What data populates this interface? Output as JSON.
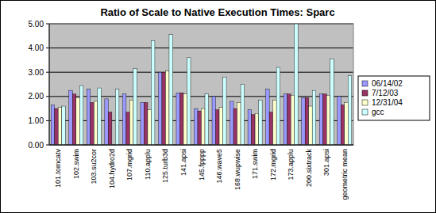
{
  "chart_data": {
    "type": "bar",
    "title": "Ratio of Scale to Native Execution Times: Sparc",
    "categories": [
      "101.tomcatv",
      "102.swim",
      "103.su2cor",
      "104.hydro2d",
      "107.mgrid",
      "110.applu",
      "125.turb3d",
      "141.apsi",
      "145.fpppp",
      "146.wave5",
      "168.wupwise",
      "171.swim",
      "172.mgrid",
      "173.applu",
      "200.sixtrack",
      "301.apsi",
      "geometric mean"
    ],
    "series": [
      {
        "name": "06/14/02",
        "color": "#9999ff",
        "values": [
          1.65,
          2.25,
          2.3,
          1.9,
          2.1,
          1.75,
          3.0,
          2.15,
          1.5,
          2.0,
          1.8,
          1.45,
          2.3,
          2.1,
          1.95,
          2.1,
          2.0
        ]
      },
      {
        "name": "7/12/03",
        "color": "#993366",
        "values": [
          1.5,
          2.1,
          1.75,
          1.35,
          1.35,
          1.75,
          3.0,
          2.15,
          1.4,
          1.45,
          1.5,
          1.25,
          1.35,
          2.1,
          1.95,
          2.1,
          1.65
        ]
      },
      {
        "name": "12/31/04",
        "color": "#ffffcc",
        "values": [
          1.55,
          1.95,
          1.8,
          null,
          1.85,
          1.45,
          3.05,
          2.1,
          1.5,
          1.55,
          1.75,
          1.3,
          1.85,
          2.05,
          1.6,
          2.05,
          1.75
        ]
      },
      {
        "name": "gcc",
        "color": "#ccffff",
        "values": [
          1.6,
          2.45,
          2.35,
          2.3,
          3.15,
          4.3,
          4.55,
          3.6,
          2.1,
          2.8,
          2.5,
          1.85,
          3.2,
          5.0,
          2.25,
          3.55,
          2.85
        ]
      }
    ],
    "ylim": [
      0,
      5
    ],
    "yticks": [
      {
        "value": 0,
        "label": "0.00"
      },
      {
        "value": 1,
        "label": "1.00"
      },
      {
        "value": 2,
        "label": "2.00"
      },
      {
        "value": 3,
        "label": "3.00"
      },
      {
        "value": 4,
        "label": "4.00"
      },
      {
        "value": 5,
        "label": "5.00"
      }
    ],
    "grid": true,
    "legend": "right"
  }
}
